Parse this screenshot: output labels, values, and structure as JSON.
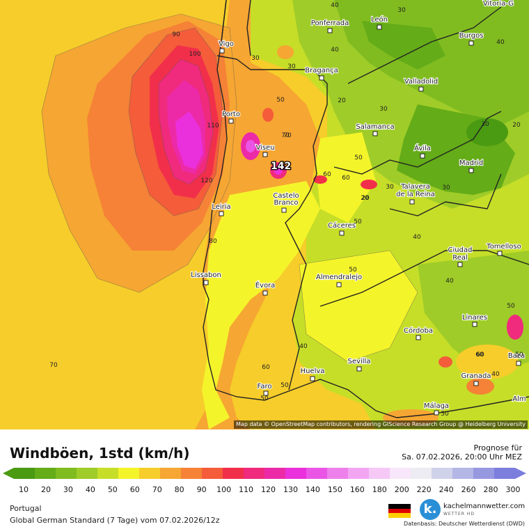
{
  "title": "Windböen, 1std (km/h)",
  "forecast": {
    "label": "Prognose für",
    "datetime": "Sa. 07.02.2026, 20:00 Uhr MEZ"
  },
  "region": "Portugal",
  "model_run": "Global German Standard (7 Tage) vom 07.02.2026/12z",
  "attribution": "Map data © OpenStreetMap contributors, rendering GIScience Research Group @ Heidelberg University",
  "brand": {
    "name": "kachelmannwetter.com",
    "sub": "WETTER HD",
    "logo_letter": "k.",
    "datenbasis": "Datenbasis: Deutscher Wetterdienst (DWD)"
  },
  "flag_colors": [
    "#000000",
    "#dd0000",
    "#ffce00"
  ],
  "scale": {
    "ticks": [
      "10",
      "20",
      "30",
      "40",
      "50",
      "60",
      "70",
      "80",
      "90",
      "100",
      "110",
      "120",
      "130",
      "140",
      "150",
      "160",
      "180",
      "200",
      "220",
      "240",
      "260",
      "280",
      "300"
    ],
    "colors": [
      "#4a9a12",
      "#64ac18",
      "#80bc20",
      "#9fcc28",
      "#c6de28",
      "#f4f42a",
      "#f6cd2a",
      "#f6a632",
      "#f58236",
      "#f45c3a",
      "#f22f4a",
      "#f02a7c",
      "#ec2aa8",
      "#ea30dc",
      "#ea55e6",
      "#ee80ec",
      "#f2a6f2",
      "#f5c8f6",
      "#f8e6fa",
      "#ececf2",
      "#d0d2ea",
      "#b4b6e6",
      "#9698e0",
      "#7c7ede"
    ]
  },
  "peak_label": "142",
  "cities": [
    {
      "name": "Vitoria-G"
    },
    {
      "name": "Ponferrada"
    },
    {
      "name": "León"
    },
    {
      "name": "Burgos"
    },
    {
      "name": "Vigo"
    },
    {
      "name": "Bragança"
    },
    {
      "name": "Valladolid"
    },
    {
      "name": "Porto"
    },
    {
      "name": "Salamanca"
    },
    {
      "name": "Viseu"
    },
    {
      "name": "Ávila"
    },
    {
      "name": "Madrid"
    },
    {
      "name": "Talavera"
    },
    {
      "name": "de la Reina"
    },
    {
      "name": "Castelo"
    },
    {
      "name": "Branco"
    },
    {
      "name": "Leiria"
    },
    {
      "name": "Cáceres"
    },
    {
      "name": "Ciudad"
    },
    {
      "name": "Real"
    },
    {
      "name": "Tomelloso"
    },
    {
      "name": "Lissabon"
    },
    {
      "name": "Évora"
    },
    {
      "name": "Almendralejo"
    },
    {
      "name": "Linares"
    },
    {
      "name": "Córdoba"
    },
    {
      "name": "Sevilla"
    },
    {
      "name": "Huelva"
    },
    {
      "name": "Granada"
    },
    {
      "name": "Baza"
    },
    {
      "name": "Faro"
    },
    {
      "name": "Málaga"
    },
    {
      "name": "Alm"
    }
  ],
  "contour_values": [
    "90",
    "100",
    "110",
    "120",
    "80",
    "70",
    "30",
    "30",
    "40",
    "30",
    "20",
    "40",
    "30",
    "50",
    "70",
    "40",
    "30",
    "20",
    "30",
    "40",
    "20",
    "60",
    "50",
    "60",
    "30",
    "20",
    "50",
    "50",
    "40",
    "50",
    "40",
    "50",
    "60",
    "50",
    "50",
    "60",
    "40",
    "50",
    "60",
    "70"
  ]
}
